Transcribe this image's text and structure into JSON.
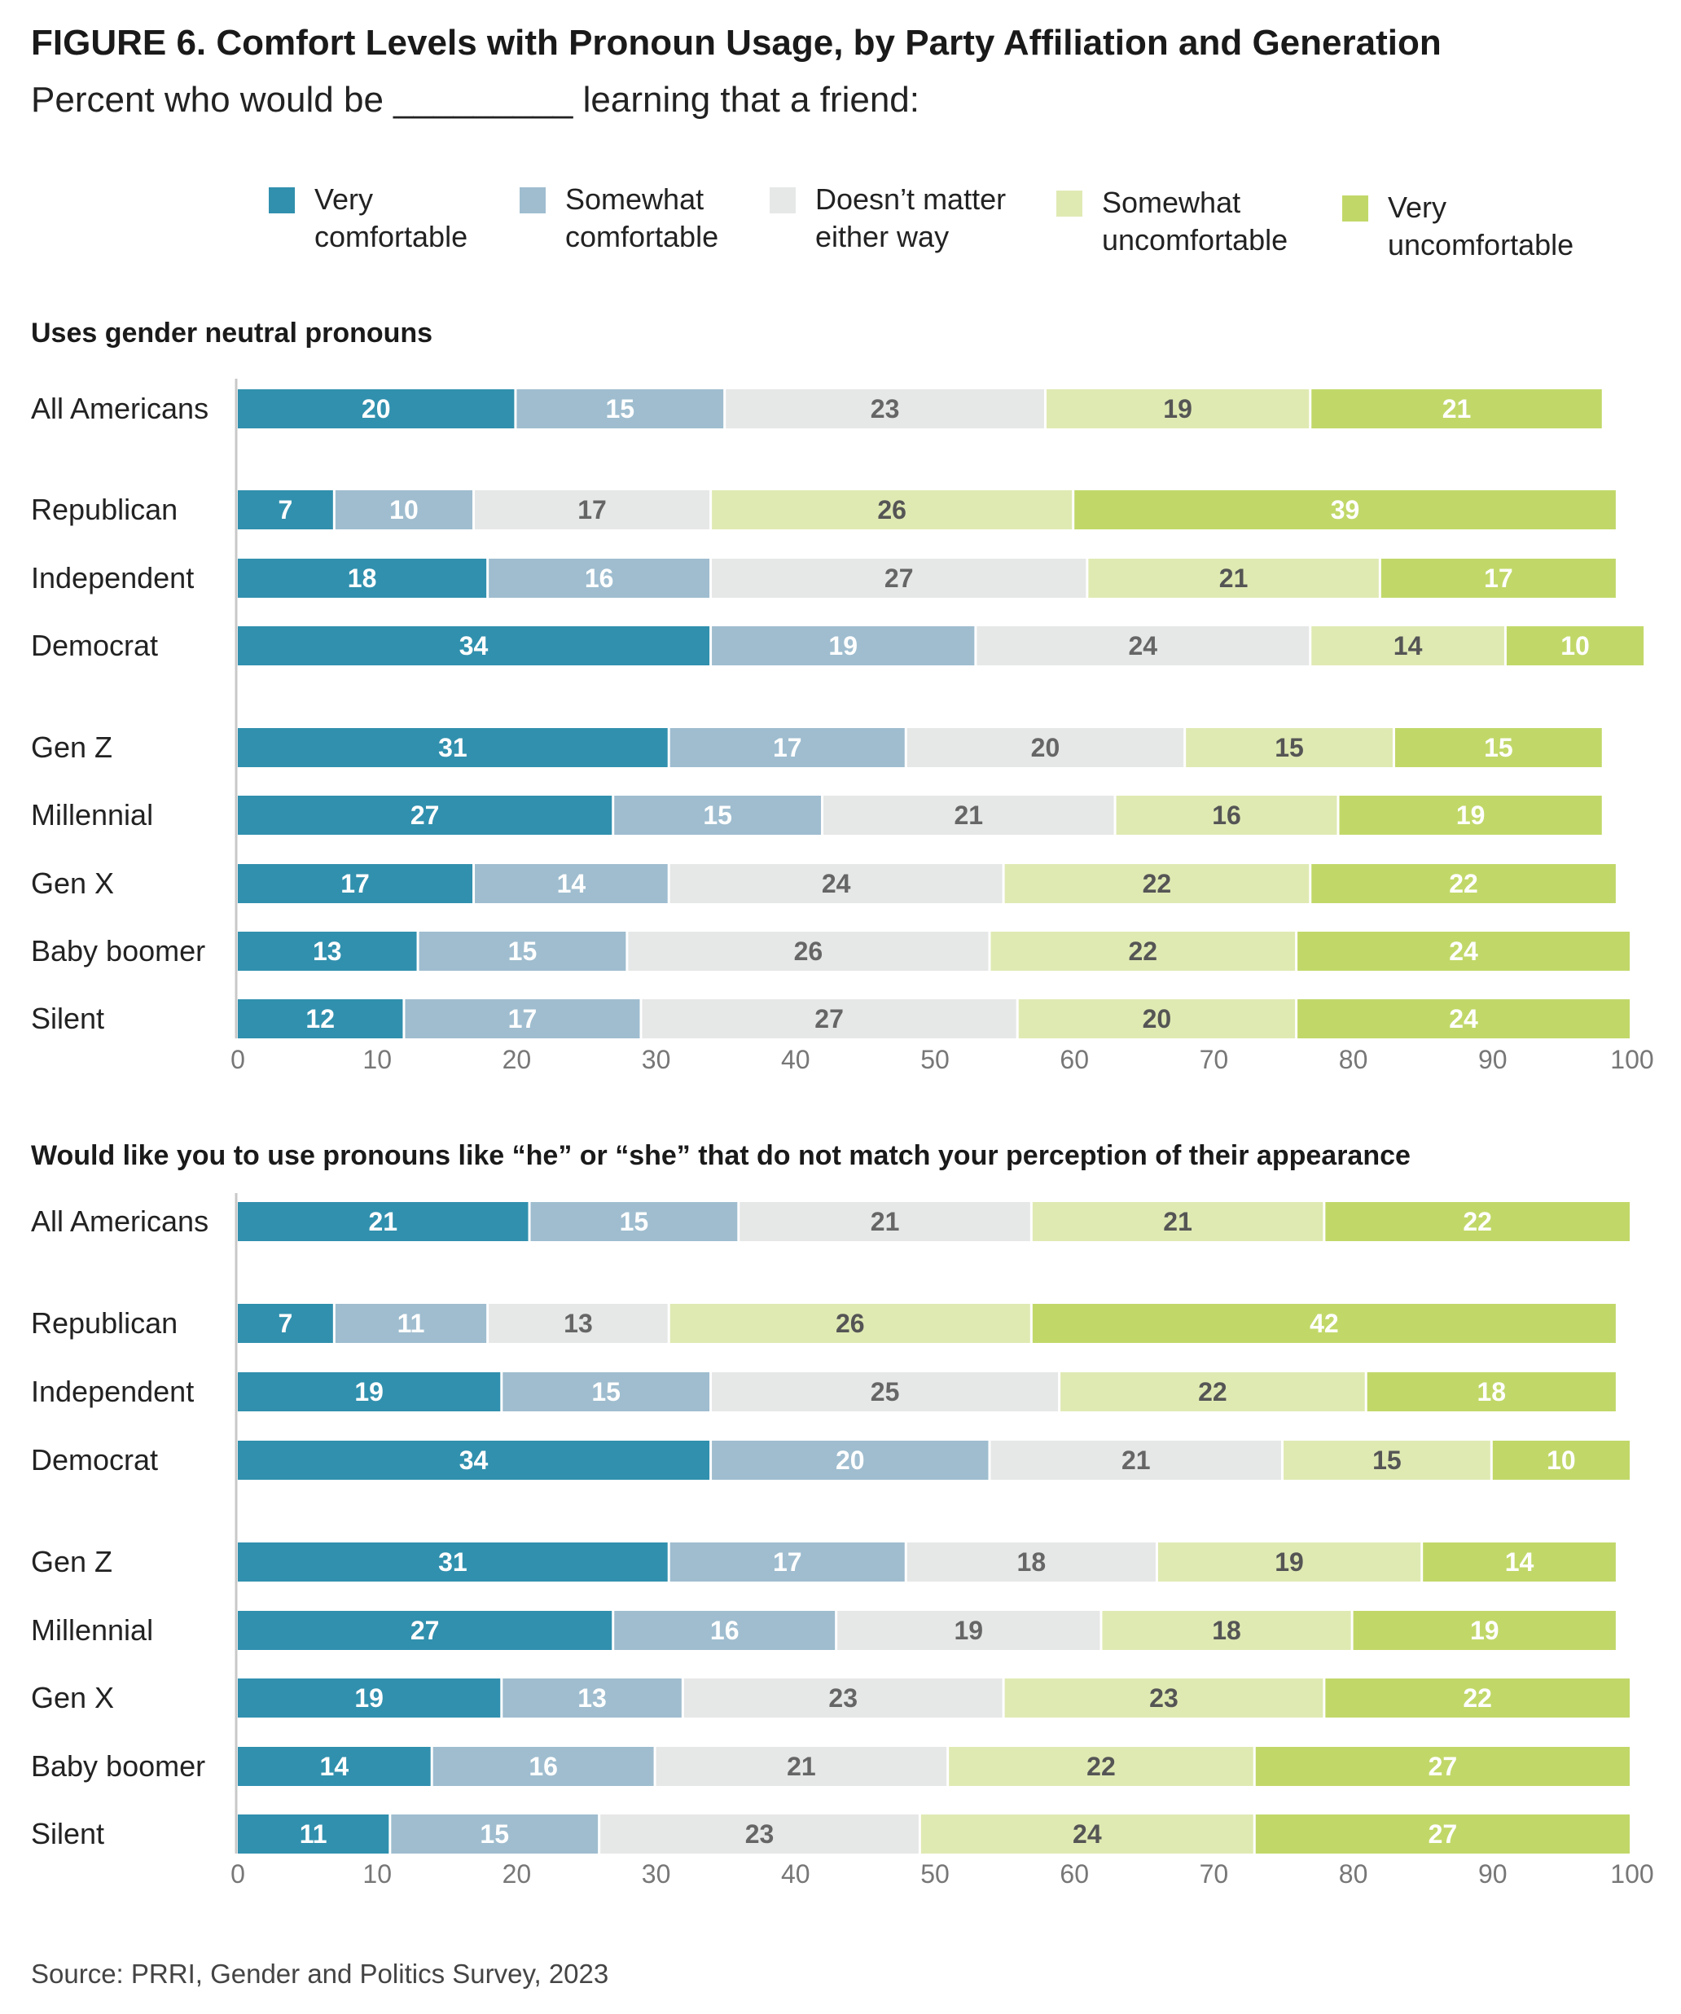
{
  "title": "FIGURE 6.  Comfort Levels with Pronoun Usage, by Party Affiliation and Generation",
  "subtitle": "Percent who would be _________ learning that a friend:",
  "source": "Source: PRRI, Gender and Politics Survey, 2023",
  "legend": [
    {
      "label": "Very\ncomfortable",
      "color": "#3190ae"
    },
    {
      "label": "Somewhat\ncomfortable",
      "color": "#9fbdcf"
    },
    {
      "label": "Doesn’t matter\neither way",
      "color": "#e6e7e7"
    },
    {
      "label": "Somewhat\nuncomfortable",
      "color": "#dfeab3"
    },
    {
      "label": "Very\nuncomfortable",
      "color": "#c1d869"
    }
  ],
  "chart_data": [
    {
      "type": "bar",
      "orientation": "horizontal",
      "stacked": true,
      "title": "Uses gender neutral pronouns",
      "categories": [
        "All Americans",
        "Republican",
        "Independent",
        "Democrat",
        "Gen Z",
        "Millennial",
        "Gen X",
        "Baby boomer",
        "Silent"
      ],
      "series": [
        {
          "name": "Very comfortable",
          "values": [
            20,
            7,
            18,
            34,
            31,
            27,
            17,
            13,
            12
          ]
        },
        {
          "name": "Somewhat comfortable",
          "values": [
            15,
            10,
            16,
            19,
            17,
            15,
            14,
            15,
            17
          ]
        },
        {
          "name": "Doesn’t matter either way",
          "values": [
            23,
            17,
            27,
            24,
            20,
            21,
            24,
            26,
            27
          ]
        },
        {
          "name": "Somewhat uncomfortable",
          "values": [
            19,
            26,
            21,
            14,
            15,
            16,
            22,
            22,
            20
          ]
        },
        {
          "name": "Very uncomfortable",
          "values": [
            21,
            39,
            17,
            10,
            15,
            19,
            22,
            24,
            24
          ]
        }
      ],
      "xlim": [
        0,
        100
      ],
      "xticks": [
        "0",
        "10",
        "20",
        "30",
        "40",
        "50",
        "60",
        "70",
        "80",
        "90",
        "100"
      ],
      "grid": false
    },
    {
      "type": "bar",
      "orientation": "horizontal",
      "stacked": true,
      "title": "Would like you to use pronouns like “he” or “she” that do not match your perception of their appearance",
      "categories": [
        "All Americans",
        "Republican",
        "Independent",
        "Democrat",
        "Gen Z",
        "Millennial",
        "Gen X",
        "Baby boomer",
        "Silent"
      ],
      "series": [
        {
          "name": "Very comfortable",
          "values": [
            21,
            7,
            19,
            34,
            31,
            27,
            19,
            14,
            11
          ]
        },
        {
          "name": "Somewhat comfortable",
          "values": [
            15,
            11,
            15,
            20,
            17,
            16,
            13,
            16,
            15
          ]
        },
        {
          "name": "Doesn’t matter either way",
          "values": [
            21,
            13,
            25,
            21,
            18,
            19,
            23,
            21,
            23
          ]
        },
        {
          "name": "Somewhat uncomfortable",
          "values": [
            21,
            26,
            22,
            15,
            19,
            18,
            23,
            22,
            24
          ]
        },
        {
          "name": "Very uncomfortable",
          "values": [
            22,
            42,
            18,
            10,
            14,
            19,
            22,
            27,
            27
          ]
        }
      ],
      "xlim": [
        0,
        100
      ],
      "xticks": [
        "0",
        "10",
        "20",
        "30",
        "40",
        "50",
        "60",
        "70",
        "80",
        "90",
        "100"
      ],
      "grid": false
    }
  ]
}
